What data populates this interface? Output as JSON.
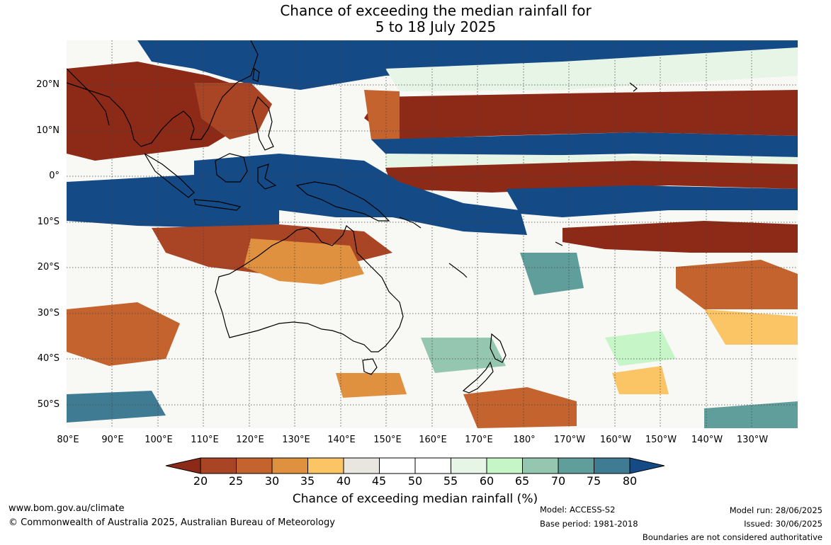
{
  "title": {
    "line1": "Chance of exceeding the median rainfall for",
    "line2": "5 to 18 July 2025"
  },
  "map": {
    "lat_ticks": [
      "20°N",
      "10°N",
      "0°",
      "10°S",
      "20°S",
      "30°S",
      "40°S",
      "50°S"
    ],
    "lon_ticks": [
      "80°E",
      "90°E",
      "100°E",
      "110°E",
      "120°E",
      "130°E",
      "140°E",
      "150°E",
      "160°E",
      "170°E",
      "180°",
      "170°W",
      "160°W",
      "150°W",
      "140°W",
      "130°W"
    ],
    "palette": {
      "p15": "#8c2a17",
      "p20": "#a94425",
      "p25": "#c4632d",
      "p30": "#e09140",
      "p35": "#fbc565",
      "p40": "#e9e6e0",
      "p45": "#ffffff",
      "p50": "#ffffff",
      "p55": "#e7f5e7",
      "p60": "#c6f5c8",
      "p65": "#95c7b0",
      "p70": "#609e9c",
      "p75": "#3f7c94",
      "p80": "#144b87"
    }
  },
  "colorbar": {
    "labels": [
      "20",
      "25",
      "30",
      "35",
      "40",
      "45",
      "50",
      "55",
      "60",
      "65",
      "70",
      "75",
      "80"
    ],
    "colors": [
      "#a94425",
      "#c4632d",
      "#e09140",
      "#fbc565",
      "#e9e6e0",
      "#ffffff",
      "#ffffff",
      "#e7f5e7",
      "#c6f5c8",
      "#95c7b0",
      "#609e9c",
      "#3f7c94"
    ],
    "under_color": "#8c2a17",
    "over_color": "#144b87",
    "title": "Chance of exceeding median rainfall (%)"
  },
  "footer": {
    "website": "www.bom.gov.au/climate",
    "copyright": "© Commonwealth of Australia 2025, Australian Bureau of Meteorology",
    "model": "Model: ACCESS-S2",
    "base_period": "Base period: 1981-2018",
    "model_run": "Model run: 28/06/2025",
    "issued": "Issued: 30/06/2025",
    "disclaimer": "Boundaries are not considered authoritative"
  }
}
